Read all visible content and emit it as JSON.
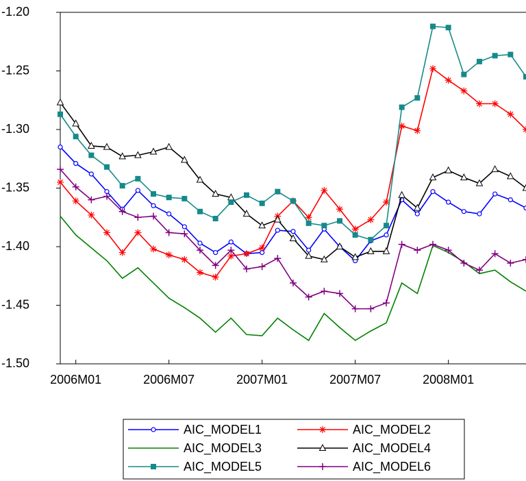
{
  "chart_data": {
    "type": "line",
    "categories": [
      null,
      "2006M01",
      null,
      null,
      null,
      null,
      null,
      "2006M07",
      null,
      null,
      null,
      null,
      null,
      "2007M01",
      null,
      null,
      null,
      null,
      null,
      "2007M07",
      null,
      null,
      null,
      null,
      null,
      "2008M01",
      null,
      null,
      null,
      null,
      null
    ],
    "ylim": [
      -1.5,
      -1.2
    ],
    "yticks": [
      {
        "value": -1.5,
        "label": "-1.50"
      },
      -1.45,
      {
        "value": -1.4,
        "label": "-1.40"
      },
      -1.35,
      {
        "value": -1.3,
        "label": "-1.30"
      },
      -1.25,
      {
        "value": -1.2,
        "label": "-1.20"
      }
    ],
    "legend": "bottom",
    "series": [
      {
        "name": "AIC_MODEL1",
        "color": "#0000ff",
        "marker": "circle",
        "values": [
          -1.315,
          -1.329,
          -1.338,
          -1.353,
          -1.368,
          -1.352,
          -1.365,
          -1.372,
          -1.383,
          -1.397,
          -1.405,
          -1.396,
          -1.406,
          -1.405,
          -1.386,
          -1.387,
          -1.403,
          -1.385,
          -1.4,
          -1.412,
          -1.395,
          -1.39,
          -1.36,
          -1.372,
          -1.353,
          -1.362,
          -1.37,
          -1.372,
          -1.355,
          -1.36,
          -1.367
        ]
      },
      {
        "name": "AIC_MODEL2",
        "color": "#ff0000",
        "marker": "star",
        "values": [
          -1.345,
          -1.361,
          -1.373,
          -1.388,
          -1.405,
          -1.388,
          -1.402,
          -1.407,
          -1.411,
          -1.422,
          -1.426,
          -1.408,
          -1.406,
          -1.401,
          -1.374,
          -1.361,
          -1.375,
          -1.352,
          -1.368,
          -1.385,
          -1.377,
          -1.362,
          -1.297,
          -1.301,
          -1.248,
          -1.258,
          -1.267,
          -1.278,
          -1.278,
          -1.287,
          -1.3
        ]
      },
      {
        "name": "AIC_MODEL3",
        "color": "#008000",
        "values": [
          -1.374,
          -1.39,
          -1.401,
          -1.412,
          -1.427,
          -1.418,
          -1.431,
          -1.444,
          -1.452,
          -1.461,
          -1.473,
          -1.461,
          -1.475,
          -1.476,
          -1.461,
          -1.471,
          -1.48,
          -1.457,
          -1.469,
          -1.48,
          -1.472,
          -1.465,
          -1.431,
          -1.44,
          -1.399,
          -1.405,
          -1.413,
          -1.423,
          -1.42,
          -1.43,
          -1.438
        ]
      },
      {
        "name": "AIC_MODEL4",
        "color": "#000000",
        "marker": "triangle",
        "values": [
          -1.277,
          -1.295,
          -1.314,
          -1.315,
          -1.323,
          -1.322,
          -1.319,
          -1.315,
          -1.326,
          -1.343,
          -1.355,
          -1.358,
          -1.372,
          -1.382,
          -1.377,
          -1.393,
          -1.408,
          -1.411,
          -1.4,
          -1.409,
          -1.404,
          -1.404,
          -1.356,
          -1.367,
          -1.341,
          -1.335,
          -1.341,
          -1.346,
          -1.334,
          -1.34,
          -1.35
        ]
      },
      {
        "name": "AIC_MODEL5",
        "color": "#158a8a",
        "marker": "square",
        "values": [
          -1.287,
          -1.306,
          -1.322,
          -1.332,
          -1.348,
          -1.342,
          -1.355,
          -1.358,
          -1.359,
          -1.37,
          -1.376,
          -1.362,
          -1.356,
          -1.363,
          -1.353,
          -1.361,
          -1.38,
          -1.382,
          -1.378,
          -1.39,
          -1.394,
          -1.382,
          -1.281,
          -1.273,
          -1.212,
          -1.213,
          -1.253,
          -1.242,
          -1.237,
          -1.236,
          -1.255
        ]
      },
      {
        "name": "AIC_MODEL6",
        "color": "#800080",
        "marker": "plus",
        "values": [
          -1.334,
          -1.349,
          -1.36,
          -1.357,
          -1.37,
          -1.375,
          -1.374,
          -1.388,
          -1.389,
          -1.403,
          -1.416,
          -1.403,
          -1.419,
          -1.417,
          -1.41,
          -1.431,
          -1.443,
          -1.438,
          -1.44,
          -1.453,
          -1.453,
          -1.448,
          -1.398,
          -1.403,
          -1.398,
          -1.403,
          -1.414,
          -1.42,
          -1.406,
          -1.414,
          -1.411
        ]
      }
    ]
  }
}
